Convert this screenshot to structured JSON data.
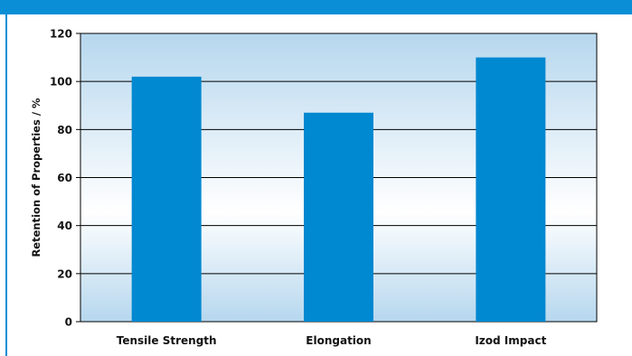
{
  "colors": {
    "header_band": "#0a8fd6",
    "frame_border": "#0a8fd6",
    "bar_fill": "#0088d0",
    "plot_top": "#b6d7ee",
    "plot_mid": "#ffffff",
    "plot_bottom": "#b6d7ee",
    "gridline": "#000000"
  },
  "chart_data": {
    "type": "bar",
    "categories": [
      "Tensile Strength",
      "Elongation",
      "Izod Impact"
    ],
    "values": [
      102,
      87,
      110
    ],
    "title": "",
    "xlabel": "",
    "ylabel": "Retention of Properties / %",
    "ylim": [
      0,
      120
    ],
    "yticks": [
      0,
      20,
      40,
      60,
      80,
      100,
      120
    ],
    "grid": true,
    "legend": "none"
  }
}
